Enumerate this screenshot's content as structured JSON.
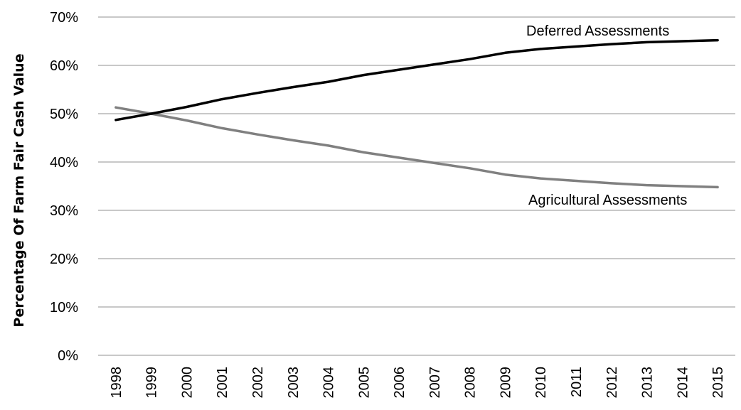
{
  "chart_data": {
    "type": "line",
    "title": "",
    "xlabel": "",
    "ylabel": "Percentage Of Farm Fair Cash Value",
    "x": [
      "1998",
      "1999",
      "2000",
      "2001",
      "2002",
      "2003",
      "2004",
      "2005",
      "2006",
      "2007",
      "2008",
      "2009",
      "2010",
      "2011",
      "2012",
      "2013",
      "2014",
      "2015"
    ],
    "yticks": [
      "0%",
      "10%",
      "20%",
      "30%",
      "40%",
      "50%",
      "60%",
      "70%"
    ],
    "ylim": [
      0,
      70
    ],
    "grid": true,
    "legend": "none",
    "series": [
      {
        "name": "Deferred Assessments",
        "color": "#000000",
        "values": [
          48.7,
          50.0,
          51.4,
          53.0,
          54.3,
          55.5,
          56.6,
          58.0,
          59.1,
          60.2,
          61.3,
          62.6,
          63.4,
          63.9,
          64.4,
          64.8,
          65.0,
          65.2
        ]
      },
      {
        "name": "Agricultural Assessments",
        "color": "#808080",
        "values": [
          51.3,
          50.0,
          48.6,
          47.0,
          45.7,
          44.5,
          43.4,
          42.0,
          40.9,
          39.8,
          38.7,
          37.4,
          36.6,
          36.1,
          35.6,
          35.2,
          35.0,
          34.8
        ]
      }
    ]
  }
}
